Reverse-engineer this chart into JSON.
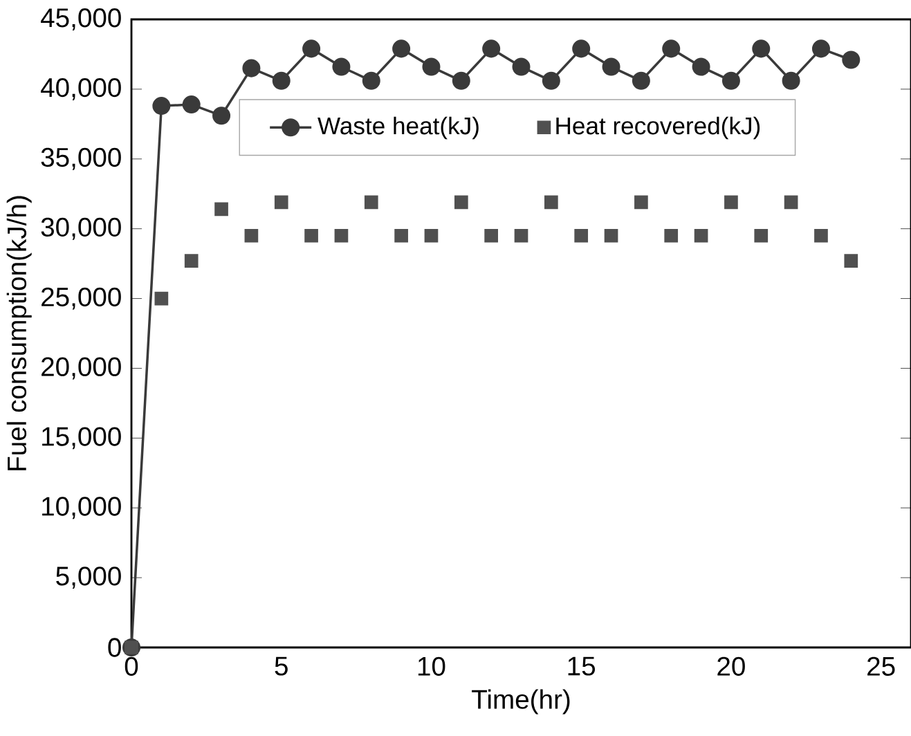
{
  "chart_data": {
    "type": "line",
    "xlabel": "Time(hr)",
    "ylabel": "Fuel consumption(kJ/h)",
    "x": [
      0,
      1,
      2,
      3,
      4,
      5,
      6,
      7,
      8,
      9,
      10,
      11,
      12,
      13,
      14,
      15,
      16,
      17,
      18,
      19,
      20,
      21,
      22,
      23,
      24
    ],
    "series": [
      {
        "name": "Waste heat(kJ)",
        "marker": "circle",
        "color": "#3a3a3a",
        "values": [
          0,
          38800,
          38900,
          38100,
          41500,
          40600,
          42900,
          41600,
          40600,
          42900,
          41600,
          40600,
          42900,
          41600,
          40600,
          42900,
          41600,
          40600,
          42900,
          41600,
          40600,
          42900,
          40600,
          42900,
          42100
        ]
      },
      {
        "name": "Heat recovered(kJ)",
        "type": "scatter",
        "marker": "square",
        "color": "#505050",
        "values": [
          0,
          25000,
          27700,
          31400,
          29500,
          31900,
          29500,
          29500,
          31900,
          29500,
          29500,
          31900,
          29500,
          29500,
          31900,
          29500,
          29500,
          31900,
          29500,
          29500,
          31900,
          29500,
          31900,
          29500,
          27700
        ]
      }
    ],
    "xlim": [
      0,
      26
    ],
    "xticks": [
      0,
      5,
      10,
      15,
      20,
      25
    ],
    "ylim": [
      0,
      45000
    ],
    "yticks": [
      0,
      {
        "value": 5000,
        "label": "5,000"
      },
      {
        "value": 10000,
        "label": "10,000"
      },
      {
        "value": 15000,
        "label": "15,000"
      },
      {
        "value": 20000,
        "label": "20,000"
      },
      {
        "value": 25000,
        "label": "25,000"
      },
      {
        "value": 30000,
        "label": "30,000"
      },
      {
        "value": 35000,
        "label": "35,000"
      },
      {
        "value": 40000,
        "label": "40,000"
      },
      {
        "value": 45000,
        "label": "45,000"
      }
    ],
    "grid": false,
    "legend": "top"
  }
}
